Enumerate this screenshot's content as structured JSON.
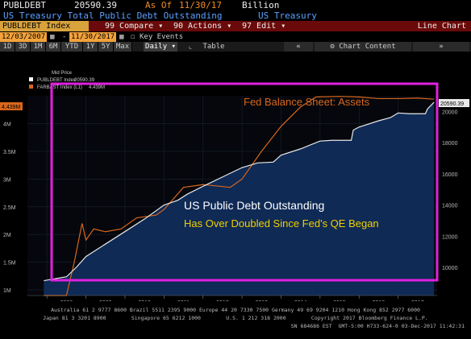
{
  "header": {
    "ticker": "PUBLDEBT",
    "last_value": "20590.39",
    "as_of_label": "As Of",
    "as_of_date": "11/30/17",
    "unit": "Billion",
    "description": "US Treasury Total Public Debt Outstanding",
    "source": "US Treasury"
  },
  "toolbar": {
    "index_label": "PUBLDEBT Index",
    "compare_label": "99 Compare",
    "actions_label": "90 Actions",
    "edit_label": "97 Edit",
    "chart_type": "Line Chart",
    "start_date": "12/03/2007",
    "end_date": "11/30/2017",
    "key_events": "Key Events",
    "periods": [
      "1D",
      "3D",
      "1M",
      "6M",
      "YTD",
      "1Y",
      "5Y",
      "Max"
    ],
    "frequency": "Daily",
    "table_label": "Table",
    "chart_content": "Chart Content"
  },
  "legend": {
    "header": "Mid Price",
    "line1_label": "PUBLDEBT Index",
    "line1_value": "20590.39",
    "line2_label": "FARBAST Index  (L1)",
    "line2_value": "4.439M"
  },
  "annotations": {
    "fed_title": "Fed Balance Sheet: Assets",
    "main_title": "US Public Debt Outstanding",
    "subtitle": "Has Over Doubled Since Fed's QE Began",
    "left_last_badge": "4.439M",
    "right_last_badge": "20590.39"
  },
  "colors": {
    "background": "#000000",
    "debt_line": "#e8e8e8",
    "debt_fill": "#0f2a55",
    "fed_line": "#d9661b",
    "highlight_box": "#e020e0",
    "title_white": "#ffffff",
    "subtitle_yellow": "#f0d000"
  },
  "chart_data": {
    "type": "line",
    "x_tick_labels": [
      "2008",
      "2009",
      "2010",
      "2011",
      "2012",
      "2013",
      "2014",
      "2015",
      "2016",
      "2017"
    ],
    "left_axis": {
      "label_ticks": [
        "1M",
        "1.5M",
        "2M",
        "2.5M",
        "3M",
        "3.5M",
        "4M"
      ],
      "ylim": [
        0.9,
        4.5
      ]
    },
    "right_axis": {
      "label_ticks": [
        "10000",
        "12000",
        "14000",
        "16000",
        "18000",
        "20000"
      ],
      "ylim": [
        8200,
        21000
      ]
    },
    "series": [
      {
        "name": "PUBLDEBT Index",
        "axis": "right",
        "x": [
          2007.92,
          2008.5,
          2008.75,
          2009.0,
          2009.5,
          2010.0,
          2010.5,
          2011.0,
          2011.35,
          2011.6,
          2012.0,
          2012.5,
          2013.0,
          2013.4,
          2013.8,
          2014.0,
          2014.5,
          2015.0,
          2015.3,
          2015.8,
          2015.85,
          2016.0,
          2016.5,
          2016.8,
          2017.0,
          2017.3,
          2017.7,
          2017.75,
          2017.92
        ],
        "y": [
          9150,
          9400,
          10000,
          10700,
          11500,
          12300,
          13100,
          14000,
          14300,
          14700,
          15200,
          15800,
          16400,
          16700,
          16750,
          17200,
          17600,
          18100,
          18150,
          18150,
          18800,
          19000,
          19400,
          19600,
          19900,
          19850,
          19850,
          20150,
          20590.39
        ]
      },
      {
        "name": "FARBAST Index",
        "axis": "left",
        "x": [
          2007.92,
          2008.5,
          2008.7,
          2008.9,
          2009.0,
          2009.2,
          2009.5,
          2009.9,
          2010.3,
          2010.8,
          2011.0,
          2011.5,
          2012.0,
          2012.7,
          2013.0,
          2013.5,
          2014.0,
          2014.5,
          2014.9,
          2015.5,
          2016.0,
          2016.5,
          2017.0,
          2017.5,
          2017.92
        ],
        "y": [
          0.9,
          0.9,
          1.5,
          2.2,
          1.9,
          2.1,
          2.05,
          2.1,
          2.3,
          2.35,
          2.45,
          2.85,
          2.9,
          2.85,
          3.0,
          3.5,
          3.95,
          4.3,
          4.48,
          4.49,
          4.48,
          4.45,
          4.45,
          4.46,
          4.439
        ]
      }
    ]
  },
  "footer": {
    "line1": "Australia 61 2 9777 8600 Brazil 5511 2395 9000 Europe 44 20 7330 7500 Germany 49 69 9204 1210 Hong Kong 852 2977 6000",
    "line2": "Japan 81 3 3201 8900        Singapore 65 6212 1000        U.S. 1 212 318 2000        Copyright 2017 Bloomberg Finance L.P.",
    "line3": "SN 684686 EST  GMT-5:00 H733-624-0 03-Dec-2017 11:42:31"
  }
}
